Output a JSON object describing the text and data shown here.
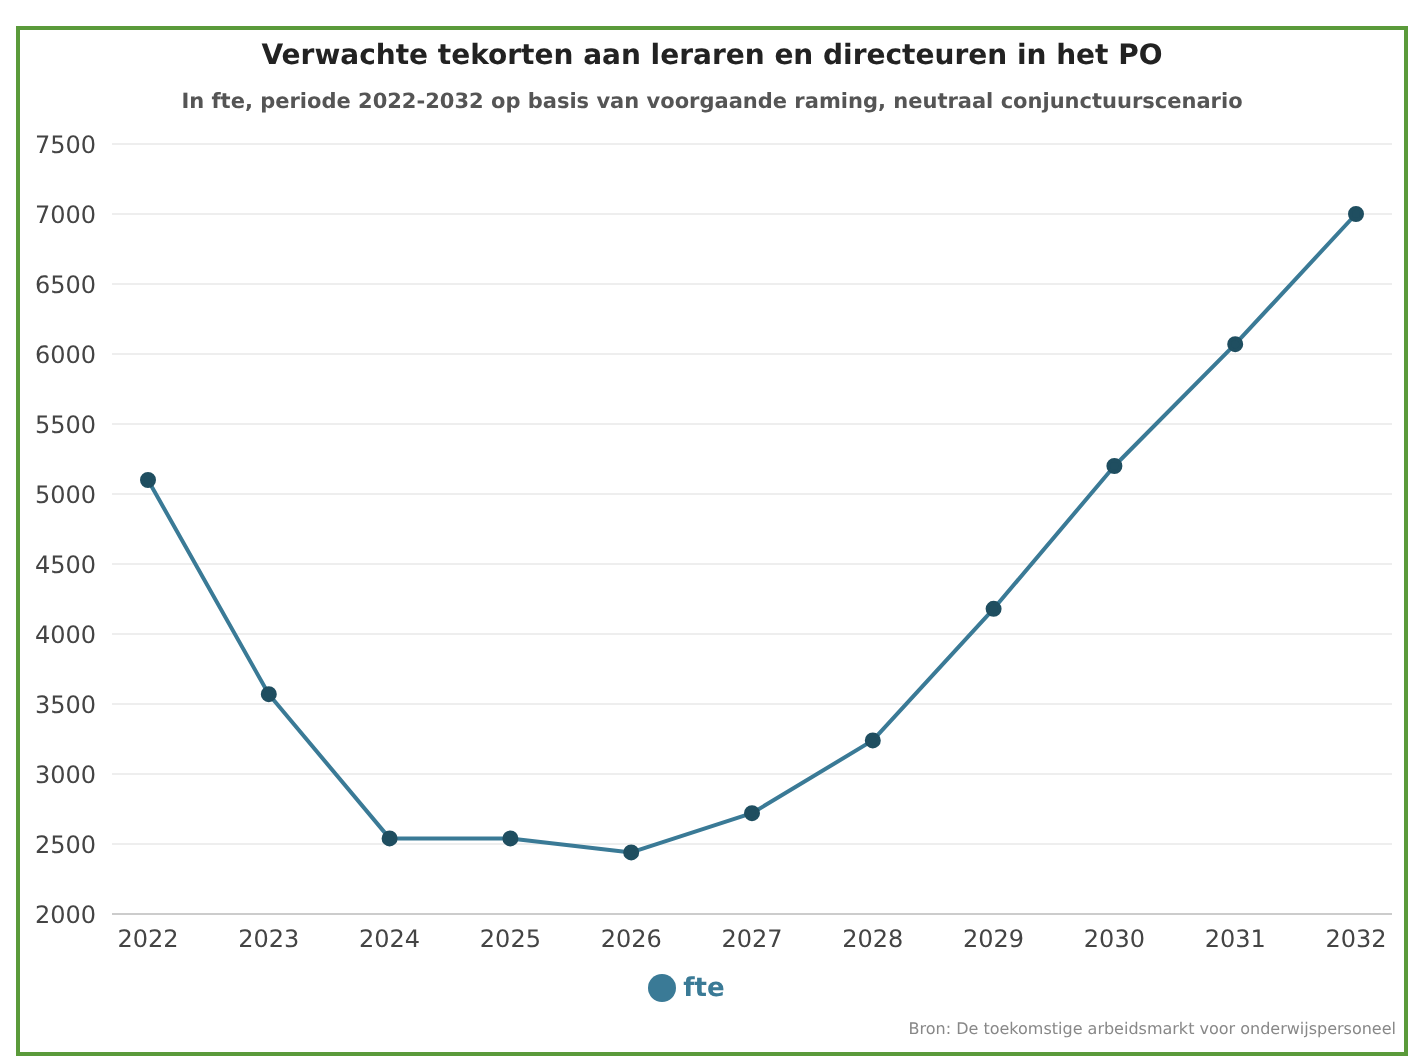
{
  "chart_data": {
    "type": "line",
    "title": "Verwachte tekorten aan leraren en directeuren in het PO",
    "subtitle": "In fte, periode 2022-2032 op basis van voorgaande raming, neutraal conjunctuurscenario",
    "annotations": [
      "Bron: De toekomstige arbeidsmarkt voor onderwijspersoneel"
    ],
    "categories": [
      "2022",
      "2023",
      "2024",
      "2025",
      "2026",
      "2027",
      "2028",
      "2029",
      "2030",
      "2031",
      "2032"
    ],
    "series": [
      {
        "name": "fte",
        "color": "#3a7a96",
        "values": [
          5100,
          3570,
          2540,
          2540,
          2440,
          2720,
          3240,
          4180,
          5200,
          6070,
          7000
        ]
      }
    ],
    "ylim": [
      2000,
      7500
    ],
    "yticks": [
      2000,
      2500,
      3000,
      3500,
      4000,
      4500,
      5000,
      5500,
      6000,
      6500,
      7000,
      7500
    ],
    "grid": "y",
    "legend": "bottom",
    "marker": "circle",
    "line_style": "solid"
  }
}
